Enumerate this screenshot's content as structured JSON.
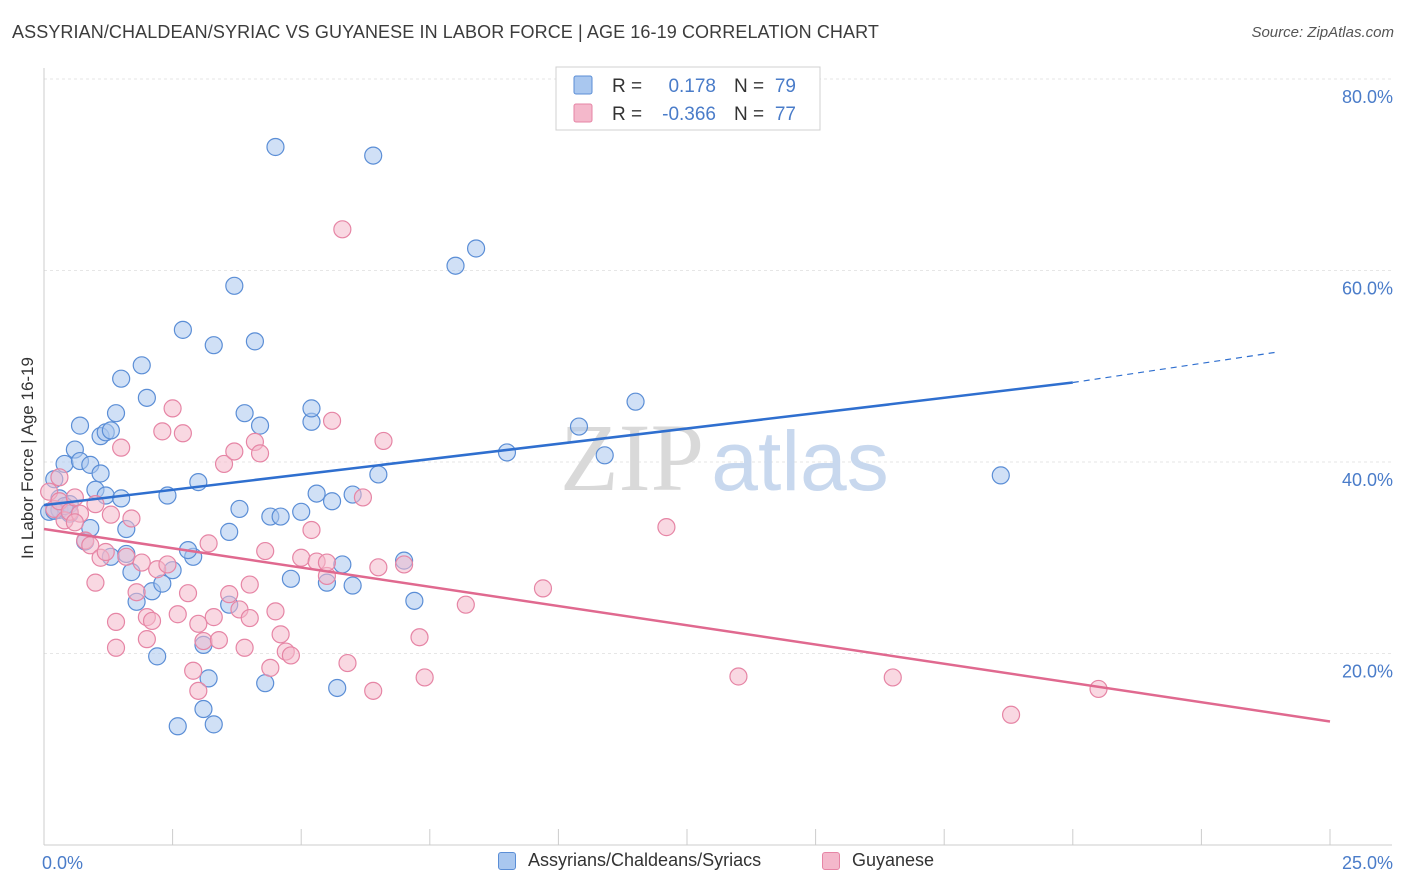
{
  "title": "ASSYRIAN/CHALDEAN/SYRIAC VS GUYANESE IN LABOR FORCE | AGE 16-19 CORRELATION CHART",
  "source": "Source: ZipAtlas.com",
  "watermark": {
    "zip": "ZIP",
    "atlas": "atlas"
  },
  "colors": {
    "blue_fill": "#a9c7ef",
    "blue_stroke": "#5b8ed6",
    "blue_line": "#2f6fcf",
    "pink_fill": "#f4b8cb",
    "pink_stroke": "#e685a5",
    "pink_line": "#e0698f",
    "axis_text": "#4a7cc9",
    "grid": "#e6e6e6"
  },
  "stats_legend": [
    {
      "r_label": "R =",
      "r_value": "0.178",
      "n_label": "N =",
      "n_value": "79"
    },
    {
      "r_label": "R =",
      "r_value": "-0.366",
      "n_label": "N =",
      "n_value": "77"
    }
  ],
  "bottom_legend": [
    {
      "label": "Assyrians/Chaldeans/Syriacs"
    },
    {
      "label": "Guyanese"
    }
  ],
  "chart_data": {
    "type": "scatter",
    "title": "ASSYRIAN/CHALDEAN/SYRIAC VS GUYANESE IN LABOR FORCE | AGE 16-19 CORRELATION CHART",
    "ylabel": "In Labor Force | Age 16-19",
    "xlabel": "",
    "xlim": [
      0,
      25
    ],
    "ylim": [
      0,
      80
    ],
    "x_tick_labels": [
      "0.0%",
      "25.0%"
    ],
    "y_ticks": [
      20,
      40,
      60,
      80
    ],
    "y_tick_labels": [
      "20.0%",
      "40.0%",
      "60.0%",
      "80.0%"
    ],
    "series": [
      {
        "name": "Assyrians/Chaldeans/Syriacs",
        "color": "blue",
        "r": 0.178,
        "n": 79,
        "trend": {
          "x0": 0,
          "y0": 35.5,
          "x1": 20,
          "y1": 48.3,
          "dash_x1": 24,
          "dash_y1": 51.5
        },
        "points": [
          [
            0.1,
            34.8
          ],
          [
            0.2,
            38.2
          ],
          [
            0.3,
            35.0
          ],
          [
            0.4,
            39.8
          ],
          [
            0.5,
            35.6
          ],
          [
            0.6,
            41.3
          ],
          [
            0.7,
            43.8
          ],
          [
            0.7,
            40.1
          ],
          [
            0.8,
            31.7
          ],
          [
            0.9,
            39.7
          ],
          [
            1.0,
            37.1
          ],
          [
            1.1,
            42.7
          ],
          [
            1.2,
            36.5
          ],
          [
            1.2,
            43.1
          ],
          [
            1.3,
            30.1
          ],
          [
            1.3,
            43.3
          ],
          [
            1.4,
            45.1
          ],
          [
            1.5,
            36.2
          ],
          [
            1.5,
            48.7
          ],
          [
            1.6,
            33.0
          ],
          [
            1.7,
            28.5
          ],
          [
            1.9,
            50.1
          ],
          [
            2.0,
            46.7
          ],
          [
            2.1,
            26.5
          ],
          [
            2.2,
            19.7
          ],
          [
            2.3,
            27.3
          ],
          [
            2.4,
            36.5
          ],
          [
            2.5,
            28.7
          ],
          [
            2.7,
            53.8
          ],
          [
            2.9,
            30.1
          ],
          [
            3.0,
            37.9
          ],
          [
            3.1,
            14.2
          ],
          [
            3.1,
            20.9
          ],
          [
            3.2,
            17.4
          ],
          [
            3.3,
            52.2
          ],
          [
            3.6,
            32.7
          ],
          [
            3.7,
            58.4
          ],
          [
            3.8,
            35.1
          ],
          [
            3.9,
            45.1
          ],
          [
            4.1,
            52.6
          ],
          [
            4.2,
            43.8
          ],
          [
            4.3,
            16.9
          ],
          [
            4.4,
            34.3
          ],
          [
            4.5,
            72.9
          ],
          [
            4.6,
            34.3
          ],
          [
            4.8,
            27.8
          ],
          [
            5.0,
            34.8
          ],
          [
            5.2,
            44.2
          ],
          [
            5.2,
            45.6
          ],
          [
            5.3,
            36.7
          ],
          [
            5.5,
            27.4
          ],
          [
            5.6,
            35.9
          ],
          [
            5.7,
            16.4
          ],
          [
            5.8,
            29.3
          ],
          [
            6.0,
            36.6
          ],
          [
            6.0,
            27.1
          ],
          [
            6.4,
            72.0
          ],
          [
            6.5,
            38.7
          ],
          [
            7.0,
            29.7
          ],
          [
            7.2,
            25.5
          ],
          [
            8.0,
            60.5
          ],
          [
            8.4,
            62.3
          ],
          [
            9.0,
            41.0
          ],
          [
            10.4,
            43.7
          ],
          [
            10.9,
            40.7
          ],
          [
            11.5,
            46.3
          ],
          [
            18.6,
            38.6
          ],
          [
            0.3,
            36.2
          ],
          [
            0.5,
            34.6
          ],
          [
            0.9,
            33.1
          ],
          [
            1.8,
            25.4
          ],
          [
            2.6,
            12.4
          ],
          [
            3.3,
            12.6
          ],
          [
            1.6,
            30.4
          ],
          [
            0.4,
            35.4
          ],
          [
            2.8,
            30.8
          ],
          [
            1.1,
            38.8
          ],
          [
            0.2,
            34.9
          ],
          [
            3.6,
            25.1
          ]
        ]
      },
      {
        "name": "Guyanese",
        "color": "pink",
        "r": -0.366,
        "n": 77,
        "trend": {
          "x0": 0,
          "y0": 33.0,
          "x1": 25,
          "y1": 12.9
        },
        "points": [
          [
            0.1,
            36.9
          ],
          [
            0.2,
            35.1
          ],
          [
            0.3,
            35.9
          ],
          [
            0.4,
            33.9
          ],
          [
            0.5,
            34.8
          ],
          [
            0.6,
            36.3
          ],
          [
            0.7,
            34.6
          ],
          [
            0.8,
            31.8
          ],
          [
            0.9,
            31.3
          ],
          [
            1.0,
            35.6
          ],
          [
            1.1,
            30.0
          ],
          [
            1.2,
            30.6
          ],
          [
            1.3,
            34.5
          ],
          [
            1.4,
            23.3
          ],
          [
            1.4,
            20.6
          ],
          [
            1.5,
            41.5
          ],
          [
            1.6,
            30.1
          ],
          [
            1.7,
            34.1
          ],
          [
            1.8,
            26.4
          ],
          [
            1.9,
            29.5
          ],
          [
            2.0,
            23.8
          ],
          [
            2.1,
            23.4
          ],
          [
            2.2,
            28.8
          ],
          [
            2.3,
            43.2
          ],
          [
            2.4,
            29.3
          ],
          [
            2.5,
            45.6
          ],
          [
            2.6,
            24.1
          ],
          [
            2.7,
            43.0
          ],
          [
            2.8,
            26.3
          ],
          [
            2.9,
            18.2
          ],
          [
            3.0,
            16.1
          ],
          [
            3.1,
            21.3
          ],
          [
            3.2,
            31.5
          ],
          [
            3.3,
            23.8
          ],
          [
            3.4,
            21.4
          ],
          [
            3.5,
            39.8
          ],
          [
            3.6,
            26.2
          ],
          [
            3.7,
            41.1
          ],
          [
            3.8,
            24.6
          ],
          [
            3.9,
            20.6
          ],
          [
            4.0,
            23.7
          ],
          [
            4.1,
            42.1
          ],
          [
            4.2,
            40.9
          ],
          [
            4.3,
            30.7
          ],
          [
            4.4,
            18.5
          ],
          [
            4.5,
            24.4
          ],
          [
            4.6,
            22.0
          ],
          [
            4.7,
            20.2
          ],
          [
            4.8,
            19.8
          ],
          [
            5.0,
            30.0
          ],
          [
            5.2,
            32.9
          ],
          [
            5.3,
            29.6
          ],
          [
            5.5,
            28.1
          ],
          [
            5.6,
            44.3
          ],
          [
            5.8,
            64.3
          ],
          [
            5.9,
            19.0
          ],
          [
            6.2,
            36.3
          ],
          [
            6.4,
            16.1
          ],
          [
            6.5,
            29.0
          ],
          [
            6.6,
            42.2
          ],
          [
            7.0,
            29.3
          ],
          [
            7.3,
            21.7
          ],
          [
            7.4,
            17.5
          ],
          [
            8.2,
            25.1
          ],
          [
            9.7,
            26.8
          ],
          [
            12.1,
            33.2
          ],
          [
            13.5,
            17.6
          ],
          [
            16.5,
            17.5
          ],
          [
            18.8,
            13.6
          ],
          [
            20.5,
            16.3
          ],
          [
            0.3,
            38.4
          ],
          [
            0.6,
            33.7
          ],
          [
            1.0,
            27.4
          ],
          [
            2.0,
            21.5
          ],
          [
            3.0,
            23.1
          ],
          [
            4.0,
            27.2
          ],
          [
            5.5,
            29.5
          ]
        ]
      }
    ]
  }
}
